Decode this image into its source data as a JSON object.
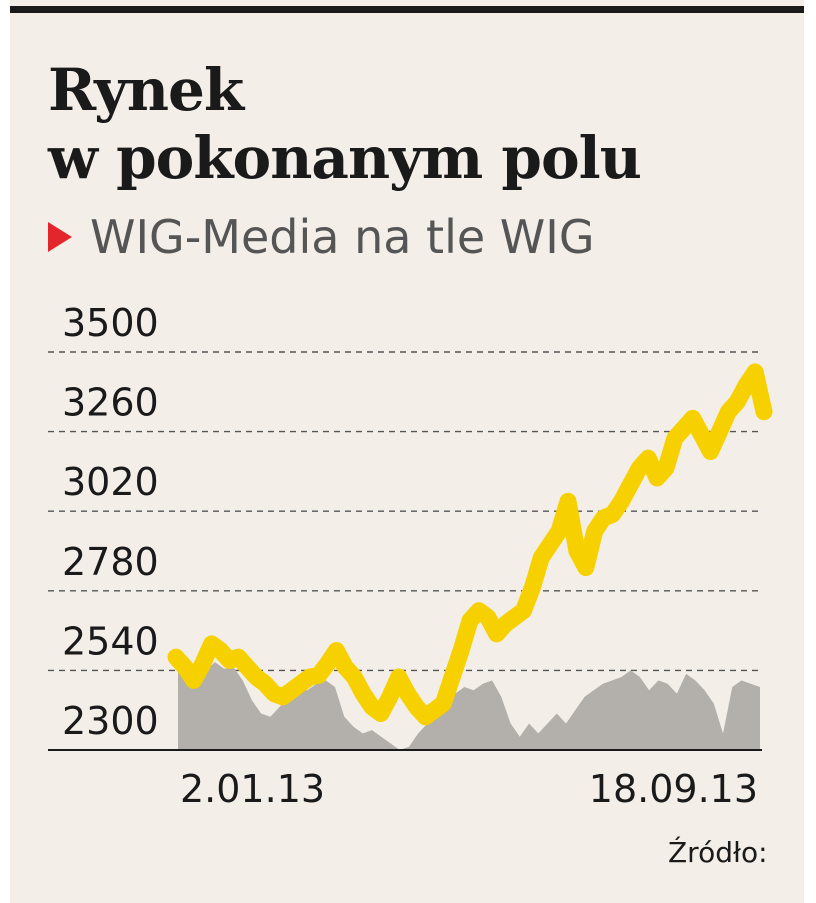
{
  "title_line1": "Rynek",
  "title_line2": "w pokonanym polu",
  "subtitle": "WIG-Media na tle WIG",
  "source": "Źródło:",
  "colors": {
    "wig_media": "#f7d000",
    "wig": "#b3b0ab",
    "background": "#f3efe8",
    "accent": "#e3262c",
    "text": "#1a1a1a"
  },
  "chart_data": {
    "type": "line",
    "xlabels": [
      "2.01.13",
      "18.09.13"
    ],
    "yticks": [
      3500,
      3260,
      3020,
      2780,
      2540,
      2300
    ],
    "ylim": [
      2300,
      3500
    ],
    "grid": true,
    "series": [
      {
        "kind": "line",
        "color": "#f7d000",
        "values": [
          2580,
          2550,
          2510,
          2560,
          2620,
          2600,
          2570,
          2580,
          2550,
          2520,
          2500,
          2470,
          2460,
          2480,
          2500,
          2520,
          2525,
          2560,
          2600,
          2550,
          2520,
          2470,
          2430,
          2410,
          2460,
          2520,
          2470,
          2430,
          2400,
          2420,
          2440,
          2520,
          2600,
          2690,
          2720,
          2700,
          2650,
          2680,
          2700,
          2720,
          2790,
          2880,
          2920,
          2960,
          3050,
          2900,
          2850,
          2960,
          3000,
          3010,
          3050,
          3100,
          3150,
          3180,
          3120,
          3150,
          3240,
          3270,
          3300,
          3250,
          3200,
          3260,
          3320,
          3350,
          3400,
          3440,
          3320
        ]
      },
      {
        "kind": "area",
        "color": "#b3b0ab",
        "values": [
          2560,
          2550,
          2555,
          2540,
          2565,
          2545,
          2550,
          2510,
          2450,
          2410,
          2400,
          2430,
          2460,
          2480,
          2480,
          2500,
          2510,
          2490,
          2400,
          2370,
          2350,
          2360,
          2340,
          2320,
          2300,
          2310,
          2350,
          2380,
          2400,
          2430,
          2470,
          2490,
          2480,
          2500,
          2510,
          2460,
          2380,
          2340,
          2380,
          2350,
          2380,
          2410,
          2380,
          2420,
          2460,
          2480,
          2500,
          2510,
          2520,
          2540,
          2520,
          2480,
          2510,
          2500,
          2470,
          2530,
          2510,
          2480,
          2440,
          2350,
          2490,
          2510,
          2500,
          2490
        ]
      }
    ]
  }
}
